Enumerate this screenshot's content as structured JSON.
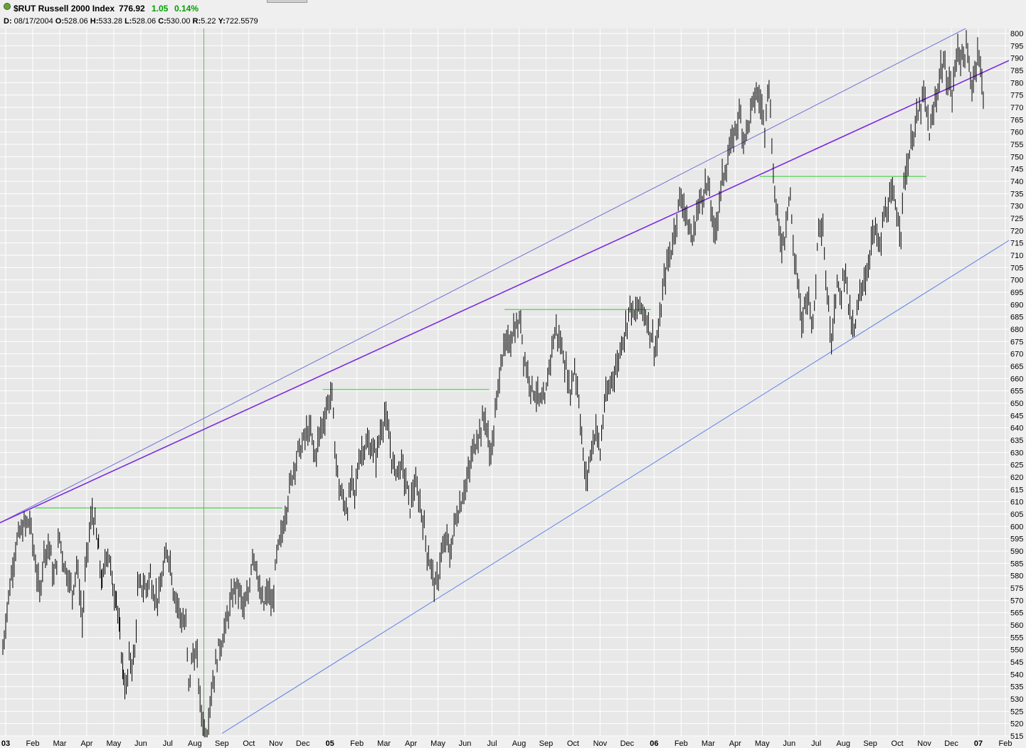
{
  "header": {
    "symbol_title": "$RUT Russell 2000 Index",
    "last": "776.92",
    "change": "1.05",
    "change_pct": "0.14%",
    "change_color": "#00a000"
  },
  "ohlc": {
    "d_label": "D:",
    "date": "08/17/2004",
    "o_label": "O:",
    "open": "528.06",
    "h_label": "H:",
    "high": "533.28",
    "l_label": "L:",
    "low": "528.06",
    "c_label": "C:",
    "close": "530.00",
    "r_label": "R:",
    "range": "5.22",
    "y_label": "Y:",
    "y": "722.5579"
  },
  "chart_data": {
    "type": "bar",
    "subtype": "ohlc",
    "ylim": [
      515,
      800
    ],
    "y_ticks": [
      515,
      520,
      525,
      530,
      535,
      540,
      545,
      550,
      555,
      560,
      565,
      570,
      575,
      580,
      585,
      590,
      595,
      600,
      605,
      610,
      615,
      620,
      625,
      630,
      635,
      640,
      645,
      650,
      655,
      660,
      665,
      670,
      675,
      680,
      685,
      690,
      695,
      700,
      705,
      710,
      715,
      720,
      725,
      730,
      735,
      740,
      745,
      750,
      755,
      760,
      765,
      770,
      775,
      780,
      785,
      790,
      795,
      800
    ],
    "grid": true,
    "x_labels": [
      "03",
      "Feb",
      "Mar",
      "Apr",
      "May",
      "Jun",
      "Jul",
      "Aug",
      "Sep",
      "Oct",
      "Nov",
      "Dec",
      "05",
      "Feb",
      "Mar",
      "Apr",
      "May",
      "Jun",
      "Jul",
      "Aug",
      "Sep",
      "Oct",
      "Nov",
      "Dec",
      "06",
      "Feb",
      "Mar",
      "Apr",
      "May",
      "Jun",
      "Jul",
      "Aug",
      "Sep",
      "Oct",
      "Nov",
      "Dec",
      "07",
      "Feb"
    ],
    "x_label_bold": [
      "03",
      "05",
      "06",
      "07"
    ],
    "series": [
      {
        "values": [
          [
            0,
            550
          ],
          [
            6,
            567
          ],
          [
            12,
            580
          ],
          [
            18,
            592
          ],
          [
            24,
            597
          ],
          [
            30,
            600
          ],
          [
            38,
            602
          ],
          [
            46,
            585
          ],
          [
            52,
            572
          ],
          [
            58,
            590
          ],
          [
            66,
            592
          ],
          [
            72,
            578
          ],
          [
            80,
            596
          ],
          [
            86,
            585
          ],
          [
            92,
            580
          ],
          [
            98,
            573
          ],
          [
            104,
            585
          ],
          [
            108,
            575
          ],
          [
            112,
            561
          ],
          [
            116,
            580
          ],
          [
            120,
            592
          ],
          [
            126,
            606
          ],
          [
            130,
            600
          ],
          [
            135,
            590
          ],
          [
            140,
            576
          ],
          [
            146,
            590
          ],
          [
            150,
            588
          ],
          [
            155,
            575
          ],
          [
            160,
            572
          ],
          [
            165,
            555
          ],
          [
            170,
            540
          ],
          [
            174,
            533
          ],
          [
            178,
            546
          ],
          [
            182,
            545
          ],
          [
            186,
            548
          ],
          [
            190,
            574
          ],
          [
            196,
            576
          ],
          [
            202,
            575
          ],
          [
            208,
            580
          ],
          [
            214,
            572
          ],
          [
            220,
            571
          ],
          [
            226,
            582
          ],
          [
            232,
            590
          ],
          [
            236,
            586
          ],
          [
            240,
            575
          ],
          [
            246,
            569
          ],
          [
            252,
            562
          ],
          [
            258,
            560
          ],
          [
            262,
            535
          ],
          [
            268,
            549
          ],
          [
            274,
            546
          ],
          [
            278,
            528
          ],
          [
            284,
            518
          ],
          [
            288,
            516
          ],
          [
            292,
            530
          ],
          [
            298,
            540
          ],
          [
            304,
            550
          ],
          [
            310,
            555
          ],
          [
            316,
            562
          ],
          [
            322,
            570
          ],
          [
            328,
            576
          ],
          [
            334,
            573
          ],
          [
            340,
            566
          ],
          [
            346,
            572
          ],
          [
            352,
            590
          ],
          [
            358,
            584
          ],
          [
            362,
            572
          ],
          [
            368,
            568
          ],
          [
            374,
            574
          ],
          [
            380,
            567
          ],
          [
            386,
            588
          ],
          [
            392,
            595
          ],
          [
            398,
            605
          ],
          [
            404,
            615
          ],
          [
            410,
            624
          ],
          [
            416,
            630
          ],
          [
            422,
            633
          ],
          [
            428,
            638
          ],
          [
            434,
            638
          ],
          [
            440,
            628
          ],
          [
            446,
            637
          ],
          [
            452,
            643
          ],
          [
            458,
            650
          ],
          [
            464,
            654
          ],
          [
            468,
            632
          ],
          [
            474,
            616
          ],
          [
            480,
            610
          ],
          [
            486,
            608
          ],
          [
            492,
            618
          ],
          [
            496,
            612
          ],
          [
            502,
            628
          ],
          [
            508,
            632
          ],
          [
            514,
            633
          ],
          [
            520,
            632
          ],
          [
            526,
            628
          ],
          [
            532,
            638
          ],
          [
            538,
            645
          ],
          [
            544,
            637
          ],
          [
            550,
            624
          ],
          [
            556,
            623
          ],
          [
            562,
            625
          ],
          [
            568,
            618
          ],
          [
            574,
            608
          ],
          [
            580,
            617
          ],
          [
            586,
            612
          ],
          [
            592,
            603
          ],
          [
            598,
            590
          ],
          [
            604,
            583
          ],
          [
            610,
            575
          ],
          [
            614,
            580
          ],
          [
            618,
            590
          ],
          [
            622,
            590
          ],
          [
            626,
            596
          ],
          [
            630,
            588
          ],
          [
            634,
            595
          ],
          [
            638,
            603
          ],
          [
            644,
            608
          ],
          [
            650,
            615
          ],
          [
            656,
            620
          ],
          [
            662,
            630
          ],
          [
            668,
            636
          ],
          [
            674,
            640
          ],
          [
            680,
            645
          ],
          [
            686,
            630
          ],
          [
            690,
            633
          ],
          [
            696,
            650
          ],
          [
            702,
            668
          ],
          [
            708,
            672
          ],
          [
            714,
            675
          ],
          [
            720,
            680
          ],
          [
            726,
            681
          ],
          [
            730,
            684
          ],
          [
            734,
            670
          ],
          [
            740,
            662
          ],
          [
            746,
            656
          ],
          [
            752,
            654
          ],
          [
            758,
            650
          ],
          [
            764,
            650
          ],
          [
            770,
            665
          ],
          [
            776,
            676
          ],
          [
            780,
            680
          ],
          [
            784,
            676
          ],
          [
            790,
            670
          ],
          [
            796,
            660
          ],
          [
            800,
            655
          ],
          [
            806,
            665
          ],
          [
            812,
            652
          ],
          [
            818,
            628
          ],
          [
            822,
            618
          ],
          [
            826,
            625
          ],
          [
            830,
            632
          ],
          [
            836,
            640
          ],
          [
            842,
            630
          ],
          [
            848,
            650
          ],
          [
            854,
            655
          ],
          [
            860,
            662
          ],
          [
            866,
            665
          ],
          [
            872,
            675
          ],
          [
            878,
            680
          ],
          [
            884,
            690
          ],
          [
            890,
            685
          ],
          [
            896,
            689
          ],
          [
            902,
            688
          ],
          [
            908,
            684
          ],
          [
            914,
            678
          ],
          [
            920,
            672
          ],
          [
            926,
            682
          ],
          [
            930,
            695
          ],
          [
            936,
            706
          ],
          [
            942,
            712
          ],
          [
            948,
            722
          ],
          [
            954,
            733
          ],
          [
            960,
            731
          ],
          [
            966,
            722
          ],
          [
            972,
            716
          ],
          [
            978,
            727
          ],
          [
            984,
            733
          ],
          [
            990,
            738
          ],
          [
            996,
            736
          ],
          [
            1002,
            718
          ],
          [
            1008,
            727
          ],
          [
            1014,
            741
          ],
          [
            1020,
            747
          ],
          [
            1026,
            754
          ],
          [
            1032,
            760
          ],
          [
            1038,
            768
          ],
          [
            1044,
            758
          ],
          [
            1050,
            762
          ],
          [
            1056,
            770
          ],
          [
            1062,
            776
          ],
          [
            1068,
            772
          ],
          [
            1074,
            762
          ],
          [
            1078,
            780
          ],
          [
            1082,
            770
          ],
          [
            1086,
            742
          ],
          [
            1090,
            730
          ],
          [
            1094,
            720
          ],
          [
            1098,
            715
          ],
          [
            1102,
            718
          ],
          [
            1106,
            730
          ],
          [
            1110,
            735
          ],
          [
            1114,
            712
          ],
          [
            1118,
            706
          ],
          [
            1122,
            695
          ],
          [
            1126,
            680
          ],
          [
            1130,
            690
          ],
          [
            1134,
            694
          ],
          [
            1138,
            690
          ],
          [
            1142,
            680
          ],
          [
            1146,
            700
          ],
          [
            1150,
            725
          ],
          [
            1156,
            722
          ],
          [
            1160,
            700
          ],
          [
            1164,
            688
          ],
          [
            1168,
            676
          ],
          [
            1172,
            690
          ],
          [
            1176,
            698
          ],
          [
            1180,
            692
          ],
          [
            1184,
            700
          ],
          [
            1188,
            705
          ],
          [
            1192,
            690
          ],
          [
            1196,
            682
          ],
          [
            1200,
            678
          ],
          [
            1206,
            690
          ],
          [
            1212,
            700
          ],
          [
            1218,
            702
          ],
          [
            1224,
            716
          ],
          [
            1230,
            720
          ],
          [
            1236,
            712
          ],
          [
            1242,
            726
          ],
          [
            1248,
            730
          ],
          [
            1254,
            734
          ],
          [
            1260,
            728
          ],
          [
            1266,
            720
          ],
          [
            1270,
            740
          ],
          [
            1276,
            748
          ],
          [
            1282,
            758
          ],
          [
            1288,
            765
          ],
          [
            1294,
            770
          ],
          [
            1298,
            775
          ],
          [
            1302,
            768
          ],
          [
            1306,
            760
          ],
          [
            1310,
            764
          ],
          [
            1314,
            772
          ],
          [
            1318,
            778
          ],
          [
            1322,
            786
          ],
          [
            1326,
            788
          ],
          [
            1330,
            782
          ],
          [
            1334,
            780
          ],
          [
            1338,
            775
          ],
          [
            1342,
            785
          ],
          [
            1346,
            795
          ],
          [
            1350,
            790
          ],
          [
            1354,
            791
          ],
          [
            1358,
            793
          ],
          [
            1362,
            786
          ],
          [
            1366,
            779
          ],
          [
            1370,
            784
          ],
          [
            1374,
            794
          ],
          [
            1378,
            785
          ],
          [
            1382,
            776
          ],
          [
            1384,
            776.92
          ]
        ]
      }
    ],
    "trendlines": [
      {
        "kind": "channel-top",
        "color": "#7070d8",
        "from": [
          0,
          601.5
        ],
        "to": [
          1,
          811
        ]
      },
      {
        "kind": "resistance",
        "color": "#7b2be0",
        "from": [
          0,
          601.5
        ],
        "to": [
          1,
          789
        ]
      },
      {
        "kind": "channel-bottom",
        "color": "#5a82e6",
        "from": [
          0.22,
          516
        ],
        "to": [
          1,
          716
        ]
      }
    ],
    "horizontal_levels": [
      {
        "color": "#33cc33",
        "y": 607.5,
        "from": 0.035,
        "to": 0.28
      },
      {
        "color": "#33cc33",
        "y": 655.5,
        "from": 0.32,
        "to": 0.485
      },
      {
        "color": "#33cc33",
        "y": 688,
        "from": 0.5,
        "to": 0.645
      },
      {
        "color": "#33cc33",
        "y": 742,
        "from": 0.753,
        "to": 0.918
      }
    ],
    "cursor_line": {
      "color": "#228822",
      "x": 0.202
    },
    "bar_color": "#000000"
  }
}
